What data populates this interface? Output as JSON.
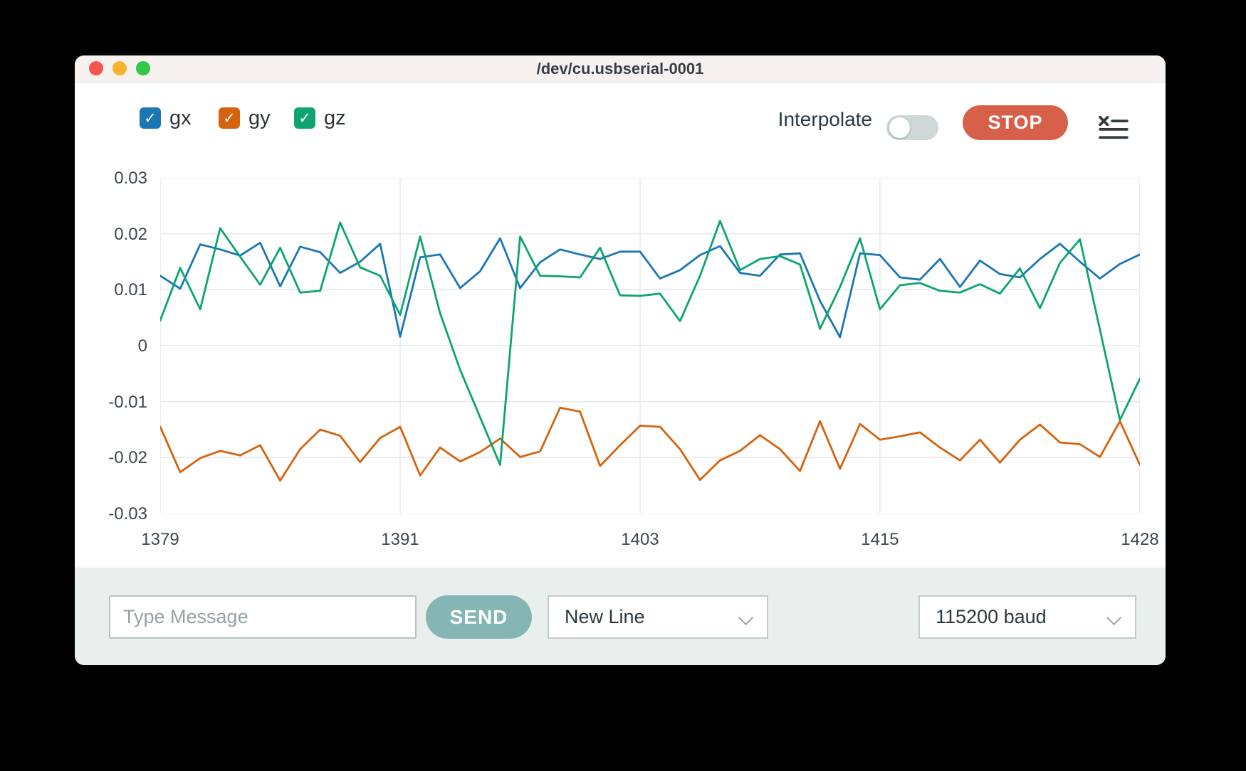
{
  "window": {
    "title": "/dev/cu.usbserial-0001"
  },
  "titlebar_buttons": {
    "close": "close",
    "minimize": "minimize",
    "zoom": "zoom"
  },
  "toolbar": {
    "series_toggles": [
      {
        "label": "gx",
        "checked": true,
        "color": "#1a77b4"
      },
      {
        "label": "gy",
        "checked": true,
        "color": "#d4630e"
      },
      {
        "label": "gz",
        "checked": true,
        "color": "#0da46f"
      }
    ],
    "interpolate_label": "Interpolate",
    "interpolate_on": false,
    "stop_label": "STOP",
    "stop_color": "#d7604b",
    "clear_list_icon": "x-list-icon"
  },
  "chart_data": {
    "type": "line",
    "title": "",
    "xlabel": "",
    "ylabel": "",
    "grid": true,
    "legend_position": "top-left",
    "ylim": [
      -0.03,
      0.03
    ],
    "yticks": [
      0.03,
      0.02,
      0.01,
      0,
      -0.01,
      -0.02,
      -0.03
    ],
    "xticks": [
      1379,
      1391,
      1403,
      1415,
      1428
    ],
    "x": [
      1379,
      1380,
      1381,
      1382,
      1383,
      1384,
      1385,
      1386,
      1387,
      1388,
      1389,
      1390,
      1391,
      1392,
      1393,
      1394,
      1395,
      1396,
      1397,
      1398,
      1399,
      1400,
      1401,
      1402,
      1403,
      1404,
      1405,
      1406,
      1407,
      1408,
      1409,
      1410,
      1411,
      1412,
      1413,
      1414,
      1415,
      1416,
      1417,
      1418,
      1419,
      1420,
      1421,
      1422,
      1423,
      1424,
      1425,
      1426,
      1427,
      1428
    ],
    "series": [
      {
        "name": "gx",
        "color": "#1a77b4",
        "values": [
          0.0125,
          0.0102,
          0.0181,
          0.0172,
          0.0161,
          0.0184,
          0.0106,
          0.0177,
          0.0167,
          0.013,
          0.015,
          0.0182,
          0.0016,
          0.0158,
          0.0163,
          0.0103,
          0.0133,
          0.0192,
          0.0103,
          0.0149,
          0.0172,
          0.0163,
          0.0155,
          0.0168,
          0.0168,
          0.012,
          0.0135,
          0.0162,
          0.0178,
          0.013,
          0.0125,
          0.0163,
          0.0165,
          0.008,
          0.0015,
          0.0165,
          0.0162,
          0.0122,
          0.0118,
          0.0155,
          0.0105,
          0.0152,
          0.0128,
          0.0122,
          0.0155,
          0.0182,
          0.015,
          0.012,
          0.0146,
          0.0163
        ]
      },
      {
        "name": "gy",
        "color": "#d4630e",
        "values": [
          -0.0145,
          -0.0226,
          -0.0201,
          -0.0188,
          -0.0196,
          -0.0178,
          -0.0241,
          -0.0185,
          -0.015,
          -0.0161,
          -0.0208,
          -0.0165,
          -0.0145,
          -0.0232,
          -0.0182,
          -0.0207,
          -0.019,
          -0.0166,
          -0.0199,
          -0.0189,
          -0.0111,
          -0.0118,
          -0.0215,
          -0.0178,
          -0.0143,
          -0.0145,
          -0.0185,
          -0.024,
          -0.0205,
          -0.0188,
          -0.016,
          -0.0185,
          -0.0224,
          -0.0135,
          -0.022,
          -0.014,
          -0.0168,
          -0.0162,
          -0.0155,
          -0.0182,
          -0.0205,
          -0.0168,
          -0.0209,
          -0.0168,
          -0.0141,
          -0.0173,
          -0.0176,
          -0.0199,
          -0.0135,
          -0.0213
        ]
      },
      {
        "name": "gz",
        "color": "#0da46f",
        "values": [
          0.0045,
          0.0139,
          0.0065,
          0.021,
          0.0159,
          0.0109,
          0.0175,
          0.0095,
          0.0098,
          0.022,
          0.014,
          0.0125,
          0.0055,
          0.0195,
          0.0058,
          -0.0043,
          -0.0128,
          -0.0213,
          0.0195,
          0.0125,
          0.0124,
          0.0122,
          0.0175,
          0.009,
          0.0089,
          0.0093,
          0.0044,
          0.0125,
          0.0223,
          0.0135,
          0.0155,
          0.016,
          0.0145,
          0.003,
          0.0105,
          0.0192,
          0.0065,
          0.0108,
          0.0112,
          0.0098,
          0.0095,
          0.011,
          0.0093,
          0.0138,
          0.0067,
          0.0148,
          0.019,
          0.0029,
          -0.0133,
          -0.0059
        ]
      }
    ]
  },
  "composer": {
    "message_placeholder": "Type Message",
    "send_label": "SEND",
    "line_ending_selected": "New Line",
    "baud_selected": "115200 baud"
  }
}
